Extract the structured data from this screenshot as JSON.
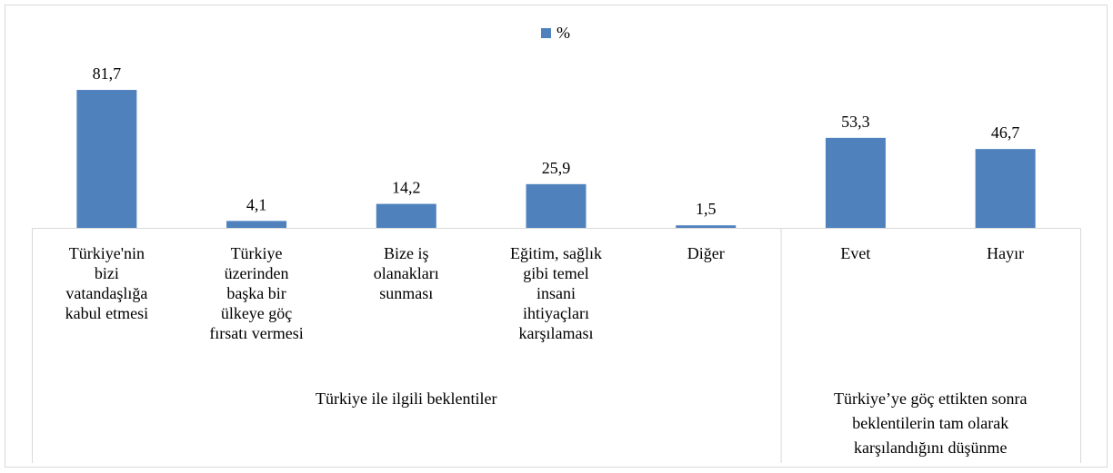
{
  "chart_data": {
    "type": "bar",
    "series": [
      {
        "name": "%",
        "color": "#4f81bd",
        "values": [
          81.7,
          4.1,
          14.2,
          25.9,
          1.5,
          53.3,
          46.7
        ],
        "value_labels": [
          "81,7",
          "4,1",
          "14,2",
          "25,9",
          "1,5",
          "53,3",
          "46,7"
        ]
      }
    ],
    "groups": [
      {
        "label": "Türkiye ile ilgili beklentiler",
        "categories": [
          "Türkiye'nin\nbizi\nvatandaşlığa\nkabul etmesi",
          "Türkiye\nüzerinden\nbaşka bir\nülkeye göç\nfırsatı vermesi",
          "Bize iş\nolanakları\nsunması",
          "Eğitim, sağlık\ngibi temel\ninsani\nihtiyaçları\nkarşılaması",
          "Diğer"
        ]
      },
      {
        "label": "Türkiye’ye göç ettikten sonra\nbeklentilerin tam olarak\nkarşılandığını düşünme",
        "categories": [
          "Evet",
          "Hayır"
        ]
      }
    ]
  }
}
